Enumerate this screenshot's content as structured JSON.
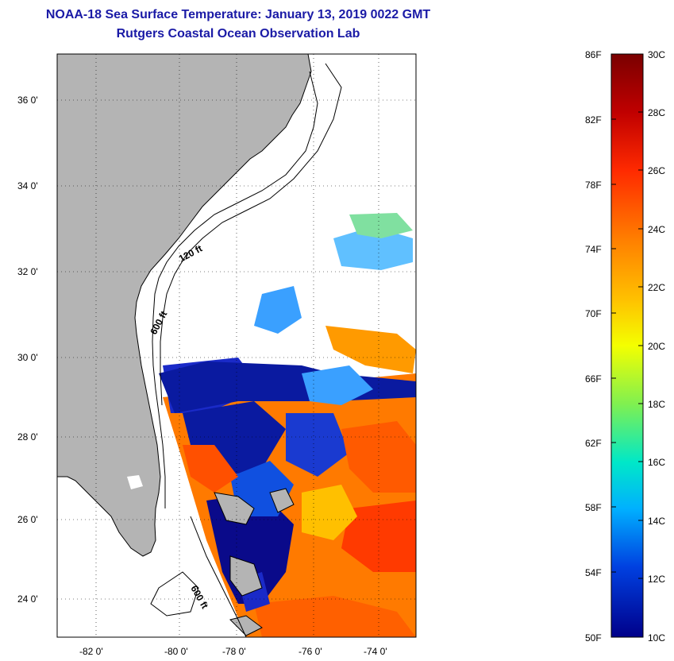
{
  "header": {
    "title": "NOAA-18 Sea Surface Temperature:  January 13, 2019 0022 GMT",
    "subtitle": "Rutgers Coastal Ocean Observation Lab"
  },
  "map": {
    "lat_labels": [
      "36 0'",
      "34 0'",
      "32 0'",
      "30 0'",
      "28 0'",
      "26 0'",
      "24 0'"
    ],
    "lon_labels": [
      "-82 0'",
      "-80 0'",
      "-78 0'",
      "-76 0'",
      "-74 0'"
    ],
    "contour_labels": [
      "120 ft",
      "600 ft",
      "600 ft"
    ],
    "land_color": "#b4b4b4",
    "frame_color": "#000000"
  },
  "colorbar": {
    "fahrenheit": [
      "86F",
      "82F",
      "78F",
      "74F",
      "70F",
      "66F",
      "62F",
      "58F",
      "54F",
      "50F"
    ],
    "celsius": [
      "30C",
      "28C",
      "26C",
      "24C",
      "22C",
      "20C",
      "18C",
      "16C",
      "14C",
      "12C",
      "10C"
    ],
    "colors": [
      "#7a0000",
      "#d40000",
      "#ff4a00",
      "#ff9a00",
      "#ffe000",
      "#b8f020",
      "#40e080",
      "#00e0e0",
      "#0090ff",
      "#0030c8",
      "#00008a"
    ]
  }
}
